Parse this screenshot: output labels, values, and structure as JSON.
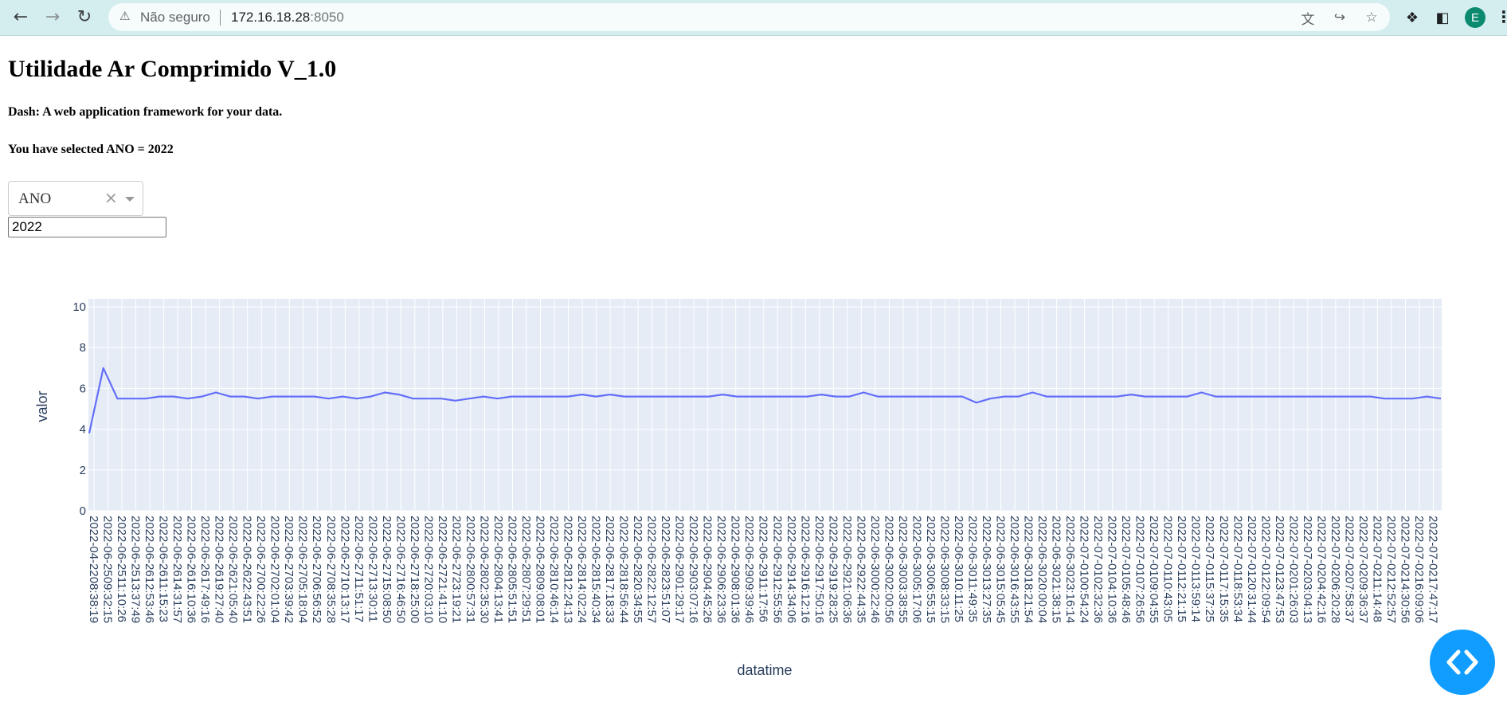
{
  "browser": {
    "security_label": "Não seguro",
    "url_host": "172.16.18.28",
    "url_port": ":8050",
    "profile_initial": "E",
    "icons": [
      "back-icon",
      "forward-icon",
      "reload-icon",
      "warning-icon",
      "translate-icon",
      "share-icon",
      "star-icon",
      "extensions-icon",
      "side-panel-icon",
      "menu-icon"
    ]
  },
  "page": {
    "title": "Utilidade Ar Comprimido V_1.0",
    "subtitle": "Dash: A web application framework for your data.",
    "selection_text": "You have selected ANO = 2022",
    "dropdown": {
      "value": "ANO"
    },
    "input": {
      "value": "2022"
    }
  },
  "colors": {
    "line": "#636efa",
    "plot_bg": "#e5ecf6",
    "grid": "#ffffff",
    "text": "#2a3f5f",
    "fab": "#119dff"
  },
  "chart_data": {
    "type": "line",
    "xlabel": "datatime",
    "ylabel": "valor",
    "ylim": [
      0,
      10
    ],
    "yticks": [
      0,
      2,
      4,
      6,
      8,
      10
    ],
    "grid": true,
    "x_tick_labels": [
      "2022-04-2208:38:19",
      "2022-06-2509:32:15",
      "2022-06-2511:10:26",
      "2022-06-2513:37:49",
      "2022-06-2612:53:46",
      "2022-06-2611:15:23",
      "2022-06-2614:31:57",
      "2022-06-2616:10:36",
      "2022-06-2617:49:16",
      "2022-06-2619:27:40",
      "2022-06-2621:05:40",
      "2022-06-2622:43:51",
      "2022-06-2700:22:26",
      "2022-06-2702:01:04",
      "2022-06-2703:39:42",
      "2022-06-2705:18:04",
      "2022-06-2706:56:52",
      "2022-06-2708:35:28",
      "2022-06-2710:13:17",
      "2022-06-2711:51:17",
      "2022-06-2713:30:11",
      "2022-06-2715:08:50",
      "2022-06-2716:46:50",
      "2022-06-2718:25:00",
      "2022-06-2720:03:10",
      "2022-06-2721:41:10",
      "2022-06-2723:19:21",
      "2022-06-2800:57:31",
      "2022-06-2802:35:30",
      "2022-06-2804:13:41",
      "2022-06-2805:51:51",
      "2022-06-2807:29:51",
      "2022-06-2809:08:01",
      "2022-06-2810:46:14",
      "2022-06-2812:24:13",
      "2022-06-2814:02:24",
      "2022-06-2815:40:34",
      "2022-06-2817:18:33",
      "2022-06-2818:56:44",
      "2022-06-2820:34:55",
      "2022-06-2822:12:57",
      "2022-06-2823:51:07",
      "2022-06-2901:29:17",
      "2022-06-2903:07:16",
      "2022-06-2904:45:26",
      "2022-06-2906:23:36",
      "2022-06-2908:01:36",
      "2022-06-2909:39:46",
      "2022-06-2911:17:56",
      "2022-06-2912:55:56",
      "2022-06-2914:34:06",
      "2022-06-2916:12:16",
      "2022-06-2917:50:16",
      "2022-06-2919:28:25",
      "2022-06-2921:06:36",
      "2022-06-2922:44:35",
      "2022-06-3000:22:46",
      "2022-06-3002:00:56",
      "2022-06-3003:38:55",
      "2022-06-3005:17:06",
      "2022-06-3006:55:15",
      "2022-06-3008:33:15",
      "2022-06-3010:11:25",
      "2022-06-3011:49:35",
      "2022-06-3013:27:35",
      "2022-06-3015:05:45",
      "2022-06-3016:43:55",
      "2022-06-3018:21:54",
      "2022-06-3020:00:04",
      "2022-06-3021:38:15",
      "2022-06-3023:16:14",
      "2022-07-0100:54:24",
      "2022-07-0102:32:36",
      "2022-07-0104:10:36",
      "2022-07-0105:48:46",
      "2022-07-0107:26:56",
      "2022-07-0109:04:55",
      "2022-07-0110:43:05",
      "2022-07-0112:21:15",
      "2022-07-0113:59:14",
      "2022-07-0115:37:25",
      "2022-07-0117:15:35",
      "2022-07-0118:53:34",
      "2022-07-0120:31:44",
      "2022-07-0122:09:54",
      "2022-07-0123:47:53",
      "2022-07-0201:26:03",
      "2022-07-0203:04:13",
      "2022-07-0204:42:16",
      "2022-07-0206:20:28",
      "2022-07-0207:58:37",
      "2022-07-0209:36:37",
      "2022-07-0211:14:48",
      "2022-07-0212:52:57",
      "2022-07-0214:30:56",
      "2022-07-0216:09:06",
      "2022-07-0217:47:17"
    ],
    "series": [
      {
        "values": [
          3.8,
          7.0,
          5.5,
          5.5,
          5.5,
          5.6,
          5.6,
          5.5,
          5.6,
          5.8,
          5.6,
          5.6,
          5.5,
          5.6,
          5.6,
          5.6,
          5.6,
          5.5,
          5.6,
          5.5,
          5.6,
          5.8,
          5.7,
          5.5,
          5.5,
          5.5,
          5.4,
          5.5,
          5.6,
          5.5,
          5.6,
          5.6,
          5.6,
          5.6,
          5.6,
          5.7,
          5.6,
          5.7,
          5.6,
          5.6,
          5.6,
          5.6,
          5.6,
          5.6,
          5.6,
          5.7,
          5.6,
          5.6,
          5.6,
          5.6,
          5.6,
          5.6,
          5.7,
          5.6,
          5.6,
          5.8,
          5.6,
          5.6,
          5.6,
          5.6,
          5.6,
          5.6,
          5.6,
          5.3,
          5.5,
          5.6,
          5.6,
          5.8,
          5.6,
          5.6,
          5.6,
          5.6,
          5.6,
          5.6,
          5.7,
          5.6,
          5.6,
          5.6,
          5.6,
          5.8,
          5.6,
          5.6,
          5.6,
          5.6,
          5.6,
          5.6,
          5.6,
          5.6,
          5.6,
          5.6,
          5.6,
          5.6,
          5.5,
          5.5,
          5.5,
          5.6,
          5.5
        ]
      }
    ]
  }
}
